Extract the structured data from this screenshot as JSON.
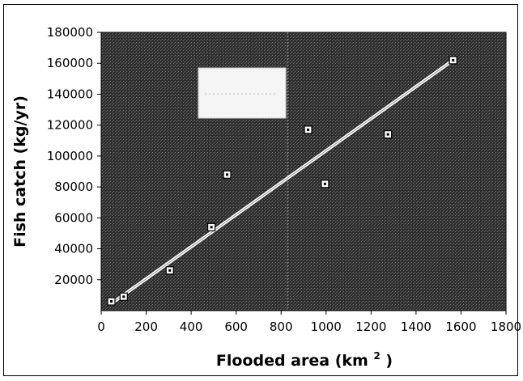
{
  "chart_data": {
    "type": "scatter",
    "title": "",
    "xlabel": "Flooded area (km",
    "xlabel_superscript": "2",
    "xlabel_suffix": ")",
    "ylabel": "Fish catch (kg/yr)",
    "xlim": [
      0,
      1800
    ],
    "ylim": [
      0,
      180000
    ],
    "x_ticks": [
      "0",
      "200",
      "400",
      "600",
      "800",
      "1000",
      "1200",
      "1400",
      "1600",
      "1800"
    ],
    "y_ticks": [
      "20000",
      "40000",
      "60000",
      "80000",
      "100000",
      "120000",
      "140000",
      "160000",
      "180000"
    ],
    "points": [
      {
        "x": 45,
        "y": 6000
      },
      {
        "x": 100,
        "y": 9000
      },
      {
        "x": 305,
        "y": 26000
      },
      {
        "x": 490,
        "y": 54000
      },
      {
        "x": 560,
        "y": 88000
      },
      {
        "x": 920,
        "y": 117000
      },
      {
        "x": 995,
        "y": 82000
      },
      {
        "x": 1275,
        "y": 114000
      },
      {
        "x": 1565,
        "y": 162000
      }
    ],
    "trendline": {
      "x": [
        40,
        1565
      ],
      "y": [
        4000,
        162000
      ]
    },
    "grid": false,
    "legend": "none",
    "colors": {
      "plot_background": "#3a3a3a",
      "trendline": "#ffffff",
      "marker_fill": "#ffffff",
      "marker_stroke": "#000000",
      "legend_box": "#f5f5f5"
    }
  }
}
